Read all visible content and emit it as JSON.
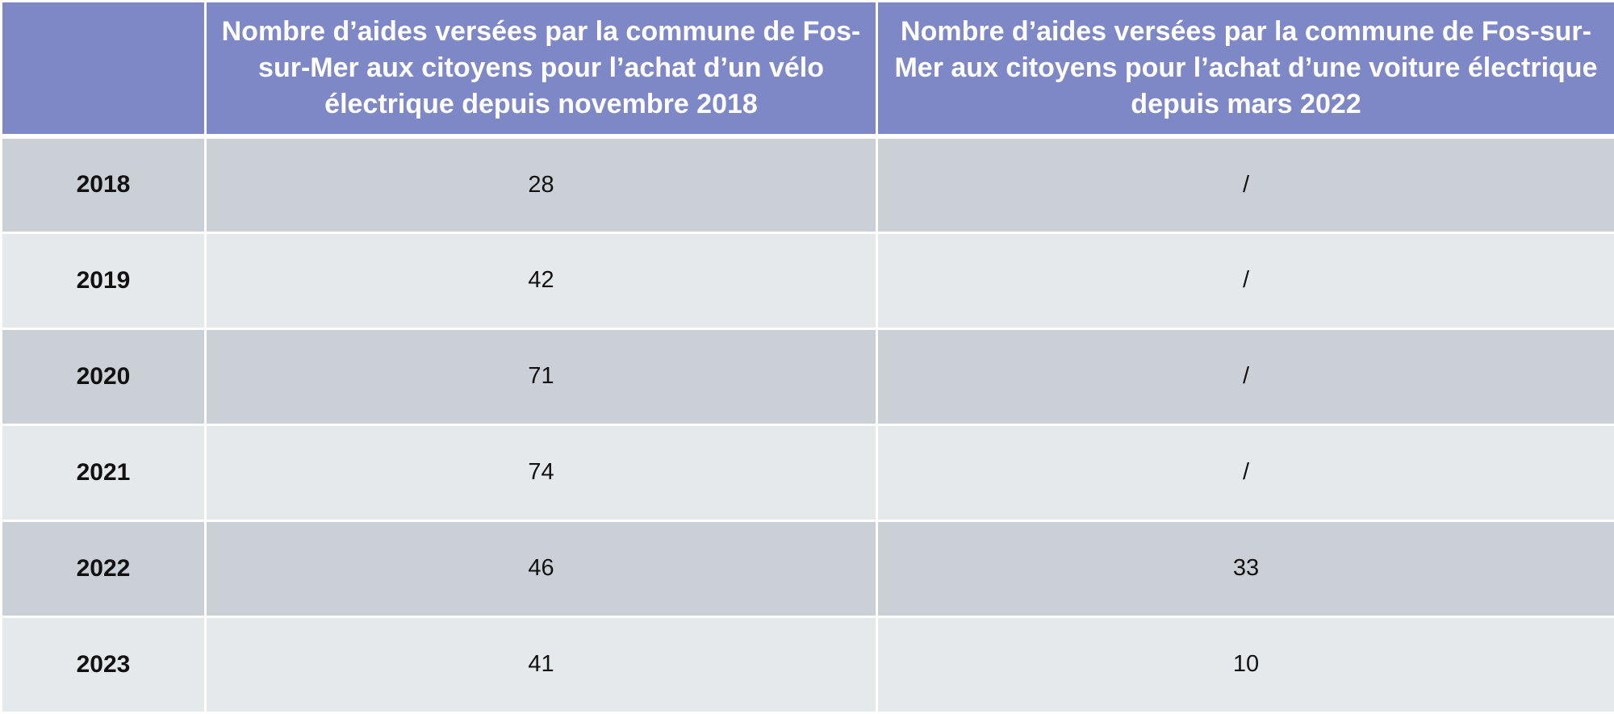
{
  "table": {
    "headers": [
      "",
      "Nombre d’aides versées par la commune de Fos-sur-Mer aux citoyens pour l’achat d’un vélo électrique depuis novembre 2018",
      "Nombre d’aides versées par la commune de Fos-sur-Mer aux citoyens pour l’achat d’une voiture électrique depuis mars 2022"
    ],
    "rows": [
      {
        "year": "2018",
        "bike": "28",
        "car": "/"
      },
      {
        "year": "2019",
        "bike": "42",
        "car": "/"
      },
      {
        "year": "2020",
        "bike": "71",
        "car": "/"
      },
      {
        "year": "2021",
        "bike": "74",
        "car": "/"
      },
      {
        "year": "2022",
        "bike": "46",
        "car": "33"
      },
      {
        "year": "2023",
        "bike": "41",
        "car": "10"
      }
    ]
  },
  "colors": {
    "header_bg": "#7f88c6",
    "row_dark": "#cbd0d7",
    "row_light": "#e6e9ec"
  }
}
